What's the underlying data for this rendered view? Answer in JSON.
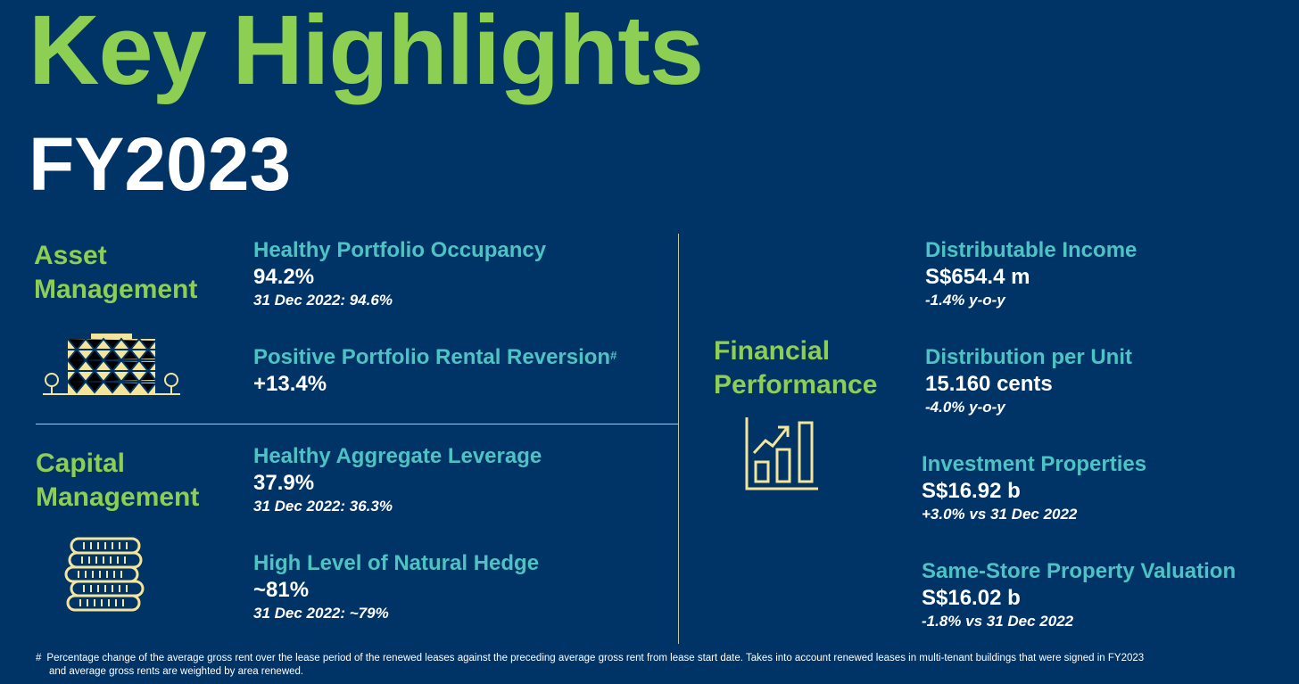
{
  "header": {
    "title": "Key Highlights",
    "subtitle": "FY2023"
  },
  "asset_management": {
    "label_line1": "Asset",
    "label_line2": "Management",
    "icon": "building-icon",
    "items": [
      {
        "title": "Healthy Portfolio Occupancy",
        "value": "94.2%",
        "note": "31 Dec 2022: 94.6%"
      },
      {
        "title": "Positive Portfolio Rental Reversion",
        "title_sup": "#",
        "value": "+13.4%"
      }
    ]
  },
  "capital_management": {
    "label_line1": "Capital",
    "label_line2": "Management",
    "icon": "coins-icon",
    "items": [
      {
        "title": "Healthy Aggregate Leverage",
        "value": "37.9%",
        "note": "31 Dec 2022: 36.3%"
      },
      {
        "title": "High Level of Natural Hedge",
        "value": "~81%",
        "note": "31 Dec 2022: ~79%"
      }
    ]
  },
  "financial_performance": {
    "label_line1": "Financial",
    "label_line2": "Performance",
    "icon": "bar-chart-growth-icon",
    "items": [
      {
        "title": "Distributable Income",
        "value": "S$654.4 m",
        "note": "-1.4% y-o-y"
      },
      {
        "title": "Distribution per Unit",
        "value": "15.160 cents",
        "note": "-4.0% y-o-y"
      },
      {
        "title": "Investment Properties",
        "value": "S$16.92 b",
        "note": "+3.0% vs 31 Dec 2022"
      },
      {
        "title": "Same-Store Property Valuation",
        "value": "S$16.02 b",
        "note": "-1.8% vs 31 Dec 2022"
      }
    ]
  },
  "footnote": {
    "mark": "#",
    "line1": "Percentage change of the average gross rent over the lease period of the renewed leases against the preceding average gross rent from lease start date. Takes into account renewed leases in multi-tenant buildings that were signed in FY2023",
    "line2": "and average gross rents are weighted by area renewed."
  },
  "colors": {
    "background": "#003366",
    "title_green": "#8ccf52",
    "kpi_teal": "#4ec3c3",
    "icon_yellow": "#f3e59b",
    "divider": "#bfc9a8"
  }
}
